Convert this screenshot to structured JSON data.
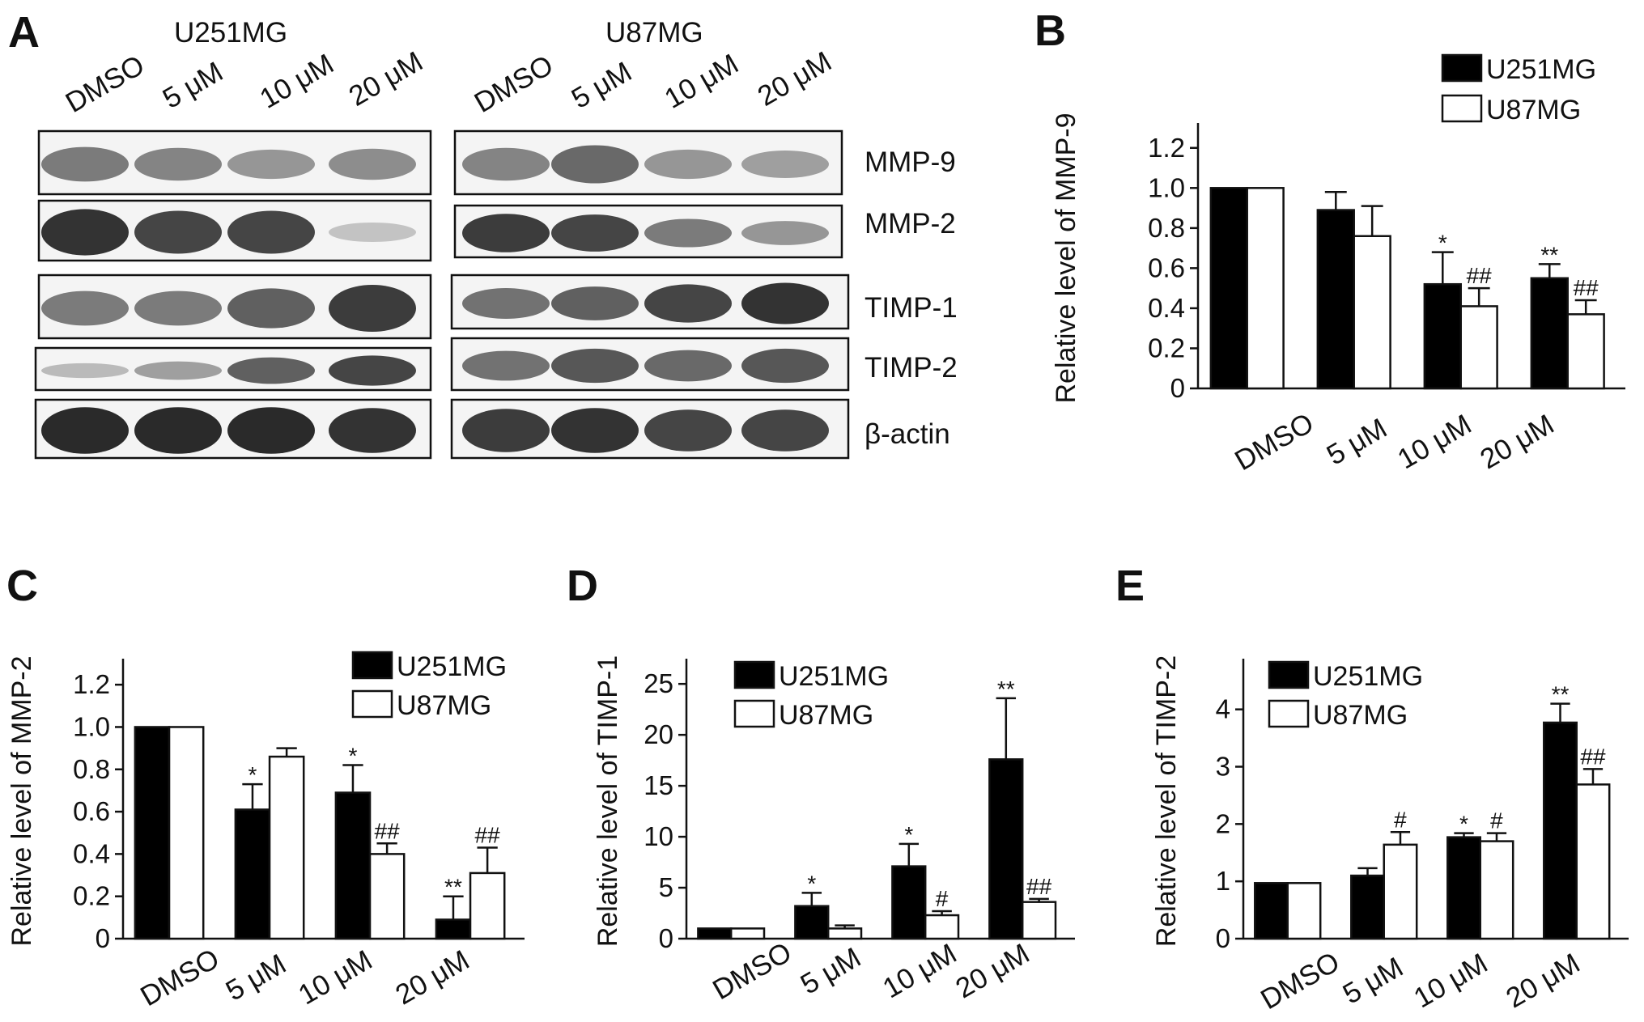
{
  "panels": {
    "A": "A",
    "B": "B",
    "C": "C",
    "D": "D",
    "E": "E"
  },
  "blot": {
    "cell_lines": [
      "U251MG",
      "U87MG"
    ],
    "lanes": [
      "DMSO",
      "5 μM",
      "10 μM",
      "20 μM"
    ],
    "proteins": [
      "MMP-9",
      "MMP-2",
      "TIMP-1",
      "TIMP-2",
      "β-actin"
    ],
    "band_intensity_left": [
      [
        0.55,
        0.5,
        0.4,
        0.45
      ],
      [
        0.95,
        0.85,
        0.85,
        0.15
      ],
      [
        0.55,
        0.55,
        0.7,
        0.9
      ],
      [
        0.2,
        0.35,
        0.7,
        0.85
      ],
      [
        1.0,
        1.0,
        1.0,
        0.95
      ]
    ],
    "band_intensity_right": [
      [
        0.5,
        0.65,
        0.4,
        0.35
      ],
      [
        0.9,
        0.85,
        0.55,
        0.4
      ],
      [
        0.6,
        0.7,
        0.85,
        0.95
      ],
      [
        0.6,
        0.75,
        0.65,
        0.75
      ],
      [
        0.9,
        0.95,
        0.85,
        0.85
      ]
    ]
  },
  "chart_data": [
    {
      "panel": "B",
      "type": "bar",
      "categories": [
        "DMSO",
        "5 μM",
        "10 μM",
        "20 μM"
      ],
      "ylabel": "Relative  level of MMP-9",
      "ylim": [
        0,
        1.3
      ],
      "yticks": [
        "0",
        "0.2",
        "0.4",
        "0.6",
        "0.8",
        "1.0",
        "1.2"
      ],
      "ytick_values": [
        0,
        0.2,
        0.4,
        0.6,
        0.8,
        1.0,
        1.2
      ],
      "legend": "top-right",
      "series": [
        {
          "name": "U251MG",
          "color": "#000000",
          "values": [
            1.0,
            0.89,
            0.52,
            0.55
          ],
          "errors": [
            0,
            0.09,
            0.16,
            0.07
          ],
          "marks": [
            "",
            "",
            "*",
            "**"
          ]
        },
        {
          "name": "U87MG",
          "color": "#ffffff",
          "values": [
            1.0,
            0.76,
            0.41,
            0.37
          ],
          "errors": [
            0,
            0.15,
            0.09,
            0.07
          ],
          "marks": [
            "",
            "",
            "##",
            "##"
          ]
        }
      ]
    },
    {
      "panel": "C",
      "type": "bar",
      "categories": [
        "DMSO",
        "5 μM",
        "10 μM",
        "20 μM"
      ],
      "ylabel": "Relative  level of MMP-2",
      "ylim": [
        0,
        1.3
      ],
      "yticks": [
        "0",
        "0.2",
        "0.4",
        "0.6",
        "0.8",
        "1.0",
        "1.2"
      ],
      "ytick_values": [
        0,
        0.2,
        0.4,
        0.6,
        0.8,
        1.0,
        1.2
      ],
      "legend": "top-right",
      "series": [
        {
          "name": "U251MG",
          "color": "#000000",
          "values": [
            1.0,
            0.61,
            0.69,
            0.09
          ],
          "errors": [
            0,
            0.12,
            0.13,
            0.11
          ],
          "marks": [
            "",
            "*",
            "*",
            "**"
          ]
        },
        {
          "name": "U87MG",
          "color": "#ffffff",
          "values": [
            1.0,
            0.86,
            0.4,
            0.31
          ],
          "errors": [
            0,
            0.04,
            0.05,
            0.12
          ],
          "marks": [
            "",
            "",
            "##",
            "##"
          ]
        }
      ]
    },
    {
      "panel": "D",
      "type": "bar",
      "categories": [
        "DMSO",
        "5 μM",
        "10 μM",
        "20 μM"
      ],
      "ylabel": "Relative  level of TIMP-1",
      "ylim": [
        0,
        27
      ],
      "yticks": [
        "0",
        "5",
        "10",
        "15",
        "20",
        "25"
      ],
      "ytick_values": [
        0,
        5,
        10,
        15,
        20,
        25
      ],
      "legend": "top-left",
      "series": [
        {
          "name": "U251MG",
          "color": "#000000",
          "values": [
            1.0,
            3.2,
            7.1,
            17.6
          ],
          "errors": [
            0,
            1.3,
            2.2,
            6.0
          ],
          "marks": [
            "",
            "*",
            "*",
            "**"
          ]
        },
        {
          "name": "U87MG",
          "color": "#ffffff",
          "values": [
            1.0,
            1.0,
            2.3,
            3.6
          ],
          "errors": [
            0,
            0.3,
            0.4,
            0.3
          ],
          "marks": [
            "",
            "",
            "#",
            "##"
          ]
        }
      ]
    },
    {
      "panel": "E",
      "type": "bar",
      "categories": [
        "DMSO",
        "5 μM",
        "10 μM",
        "20 μM"
      ],
      "ylabel": "Relative  level of TIMP-2",
      "ylim": [
        0,
        4.8
      ],
      "yticks": [
        "0",
        "1",
        "2",
        "3",
        "4"
      ],
      "ytick_values": [
        0,
        1,
        2,
        3,
        4
      ],
      "legend": "top-left",
      "series": [
        {
          "name": "U251MG",
          "color": "#000000",
          "values": [
            0.97,
            1.1,
            1.77,
            3.77
          ],
          "errors": [
            0,
            0.13,
            0.07,
            0.33
          ],
          "marks": [
            "",
            "",
            "*",
            "**"
          ]
        },
        {
          "name": "U87MG",
          "color": "#ffffff",
          "values": [
            0.97,
            1.64,
            1.7,
            2.69
          ],
          "errors": [
            0,
            0.22,
            0.14,
            0.27
          ],
          "marks": [
            "",
            "#",
            "#",
            "##"
          ]
        }
      ]
    }
  ]
}
